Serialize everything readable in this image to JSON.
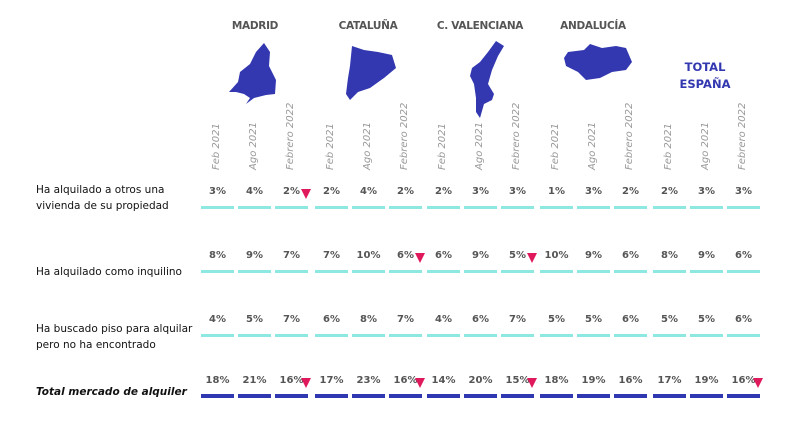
{
  "regions": [
    "MADRID",
    "CATALUÑA",
    "C. VALENCIANA",
    "ANDALUCÍA"
  ],
  "total_label_line1": "TOTAL",
  "total_label_line2": "ESPAÑA",
  "periods": [
    "Feb 2021",
    "Ago 2021",
    "Febrero 2022"
  ],
  "colors": {
    "map": "#3338b0",
    "bar": "#8ee8e2",
    "total_bar": "#2f38b0",
    "decrease_marker": "#e0185c"
  },
  "rows": [
    {
      "label": "Ha alquilado a otros una vivienda de su propiedad",
      "values": [
        [
          "3%",
          "4%",
          "2%"
        ],
        [
          "2%",
          "4%",
          "2%"
        ],
        [
          "2%",
          "3%",
          "3%"
        ],
        [
          "1%",
          "3%",
          "2%"
        ],
        [
          "2%",
          "3%",
          "3%"
        ]
      ],
      "decrease": [
        [
          false,
          false,
          true
        ],
        [
          false,
          false,
          false
        ],
        [
          false,
          false,
          false
        ],
        [
          false,
          false,
          false
        ],
        [
          false,
          false,
          false
        ]
      ]
    },
    {
      "label": "Ha alquilado como inquilino",
      "values": [
        [
          "8%",
          "9%",
          "7%"
        ],
        [
          "7%",
          "10%",
          "6%"
        ],
        [
          "6%",
          "9%",
          "5%"
        ],
        [
          "10%",
          "9%",
          "6%"
        ],
        [
          "8%",
          "9%",
          "6%"
        ]
      ],
      "decrease": [
        [
          false,
          false,
          false
        ],
        [
          false,
          false,
          true
        ],
        [
          false,
          false,
          true
        ],
        [
          false,
          false,
          false
        ],
        [
          false,
          false,
          false
        ]
      ]
    },
    {
      "label": "Ha buscado piso para alquilar pero no ha encontrado",
      "values": [
        [
          "4%",
          "5%",
          "7%"
        ],
        [
          "6%",
          "8%",
          "7%"
        ],
        [
          "4%",
          "6%",
          "7%"
        ],
        [
          "5%",
          "5%",
          "6%"
        ],
        [
          "5%",
          "5%",
          "6%"
        ]
      ],
      "decrease": [
        [
          false,
          false,
          false
        ],
        [
          false,
          false,
          false
        ],
        [
          false,
          false,
          false
        ],
        [
          false,
          false,
          false
        ],
        [
          false,
          false,
          false
        ]
      ]
    },
    {
      "label": "Total mercado de alquiler",
      "values": [
        [
          "18%",
          "21%",
          "16%"
        ],
        [
          "17%",
          "23%",
          "16%"
        ],
        [
          "14%",
          "20%",
          "15%"
        ],
        [
          "18%",
          "19%",
          "16%"
        ],
        [
          "17%",
          "19%",
          "16%"
        ]
      ],
      "decrease": [
        [
          false,
          false,
          true
        ],
        [
          false,
          false,
          true
        ],
        [
          false,
          false,
          true
        ],
        [
          false,
          false,
          false
        ],
        [
          false,
          false,
          true
        ]
      ]
    }
  ]
}
